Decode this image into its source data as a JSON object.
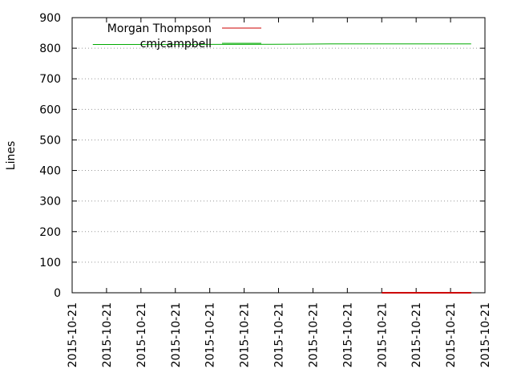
{
  "chart_data": {
    "type": "line",
    "xlabel": "",
    "ylabel": "Lines",
    "ylim": [
      0,
      900
    ],
    "yticks": [
      0,
      100,
      200,
      300,
      400,
      500,
      600,
      700,
      800,
      900
    ],
    "xtick_labels": [
      "2015-10-21",
      "2015-10-21",
      "2015-10-21",
      "2015-10-21",
      "2015-10-21",
      "2015-10-21",
      "2015-10-21",
      "2015-10-21",
      "2015-10-21",
      "2015-10-21",
      "2015-10-21",
      "2015-10-21",
      "2015-10-21"
    ],
    "grid": true,
    "legend_position": "top-left",
    "series": [
      {
        "name": "Morgan Thompson",
        "color": "#cc0000",
        "points": [
          [
            9.0,
            0
          ],
          [
            11.6,
            0
          ]
        ]
      },
      {
        "name": "cmjcampbell",
        "color": "#00aa00",
        "points": [
          [
            0.6,
            812
          ],
          [
            5.8,
            813
          ],
          [
            7.5,
            814
          ],
          [
            11.6,
            814
          ]
        ]
      }
    ]
  }
}
